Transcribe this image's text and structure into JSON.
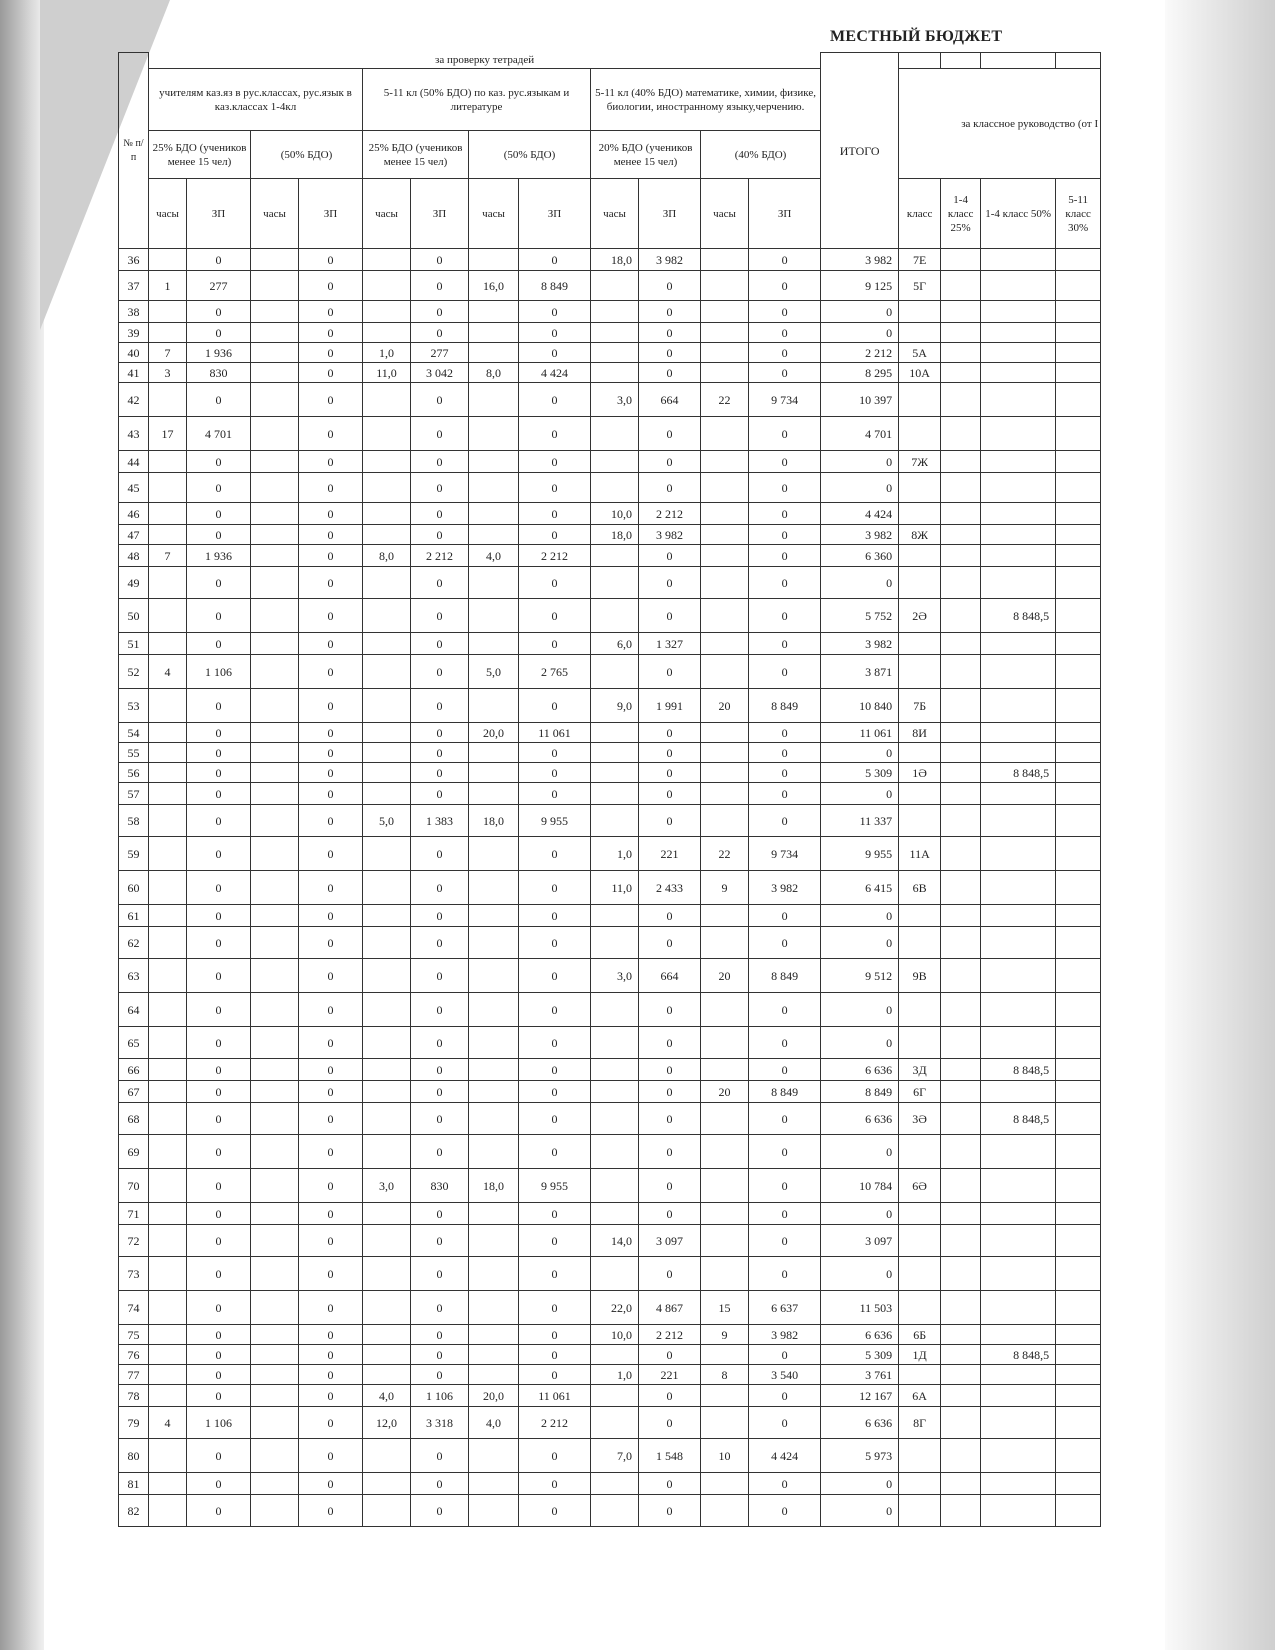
{
  "header": {
    "title": "МЕСТНЫЙ БЮДЖЕТ"
  },
  "table": {
    "section": "за проверку тетрадей",
    "number_header": "№ п/п",
    "groups": [
      "учителям каз.яз в рус.классах, рус.язык в каз.классах 1-4кл",
      "5-11 кл (50% БДО) по каз. рус.языкам и литературе",
      "5-11 кл (40% БДО) математике, химии, физике, биологии, иностранному языку,черчению."
    ],
    "subgroups": [
      "25% БДО (учеников менее 15 чел)",
      "(50% БДО)",
      "25% БДО (учеников менее 15 чел)",
      "(50% БДО)",
      "20% БДО (учеников менее 15 чел)",
      "(40% БДО)"
    ],
    "total_header": "ИТОГО",
    "class_duty_header": "за классное руководство (от I",
    "columns": [
      "часы",
      "ЗП",
      "часы",
      "ЗП",
      "часы",
      "ЗП",
      "часы",
      "ЗП",
      "часы",
      "ЗП",
      "часы",
      "ЗП",
      "класс",
      "1-4 класс 25%",
      "1-4 класс 50%",
      "5-11 класс 30%"
    ],
    "rows": [
      [
        "36",
        null,
        "0",
        null,
        "0",
        null,
        "0",
        null,
        "0",
        "18,0",
        "3 982",
        null,
        "0",
        "3 982",
        "7Е",
        null,
        null,
        null
      ],
      [
        "37",
        "1",
        "277",
        null,
        "0",
        null,
        "0",
        "16,0",
        "8 849",
        null,
        "0",
        null,
        "0",
        "9 125",
        "5Г",
        null,
        null,
        null
      ],
      [
        "38",
        null,
        "0",
        null,
        "0",
        null,
        "0",
        null,
        "0",
        null,
        "0",
        null,
        "0",
        "0",
        null,
        null,
        null,
        null
      ],
      [
        "39",
        null,
        "0",
        null,
        "0",
        null,
        "0",
        null,
        "0",
        null,
        "0",
        null,
        "0",
        "0",
        null,
        null,
        null,
        null
      ],
      [
        "40",
        "7",
        "1 936",
        null,
        "0",
        "1,0",
        "277",
        null,
        "0",
        null,
        "0",
        null,
        "0",
        "2 212",
        "5А",
        null,
        null,
        null
      ],
      [
        "41",
        "3",
        "830",
        null,
        "0",
        "11,0",
        "3 042",
        "8,0",
        "4 424",
        null,
        "0",
        null,
        "0",
        "8 295",
        "10А",
        null,
        null,
        null
      ],
      [
        "42",
        null,
        "0",
        null,
        "0",
        null,
        "0",
        null,
        "0",
        "3,0",
        "664",
        "22",
        "9 734",
        "10 397",
        null,
        null,
        null,
        null
      ],
      [
        "43",
        "17",
        "4 701",
        null,
        "0",
        null,
        "0",
        null,
        "0",
        null,
        "0",
        null,
        "0",
        "4 701",
        null,
        null,
        null,
        null
      ],
      [
        "44",
        null,
        "0",
        null,
        "0",
        null,
        "0",
        null,
        "0",
        null,
        "0",
        null,
        "0",
        "0",
        "7Ж",
        null,
        null,
        null
      ],
      [
        "45",
        null,
        "0",
        null,
        "0",
        null,
        "0",
        null,
        "0",
        null,
        "0",
        null,
        "0",
        "0",
        null,
        null,
        null,
        null
      ],
      [
        "46",
        null,
        "0",
        null,
        "0",
        null,
        "0",
        null,
        "0",
        "10,0",
        "2 212",
        null,
        "0",
        "4 424",
        null,
        null,
        null,
        null
      ],
      [
        "47",
        null,
        "0",
        null,
        "0",
        null,
        "0",
        null,
        "0",
        "18,0",
        "3 982",
        null,
        "0",
        "3 982",
        "8Ж",
        null,
        null,
        null
      ],
      [
        "48",
        "7",
        "1 936",
        null,
        "0",
        "8,0",
        "2 212",
        "4,0",
        "2 212",
        null,
        "0",
        null,
        "0",
        "6 360",
        null,
        null,
        null,
        null
      ],
      [
        "49",
        null,
        "0",
        null,
        "0",
        null,
        "0",
        null,
        "0",
        null,
        "0",
        null,
        "0",
        "0",
        null,
        null,
        null,
        null
      ],
      [
        "50",
        null,
        "0",
        null,
        "0",
        null,
        "0",
        null,
        "0",
        null,
        "0",
        null,
        "0",
        "5 752",
        "2Ә",
        null,
        "8 848,5",
        null
      ],
      [
        "51",
        null,
        "0",
        null,
        "0",
        null,
        "0",
        null,
        "0",
        "6,0",
        "1 327",
        null,
        "0",
        "3 982",
        null,
        null,
        null,
        null
      ],
      [
        "52",
        "4",
        "1 106",
        null,
        "0",
        null,
        "0",
        "5,0",
        "2 765",
        null,
        "0",
        null,
        "0",
        "3 871",
        null,
        null,
        null,
        null
      ],
      [
        "53",
        null,
        "0",
        null,
        "0",
        null,
        "0",
        null,
        "0",
        "9,0",
        "1 991",
        "20",
        "8 849",
        "10 840",
        "7Б",
        null,
        null,
        null
      ],
      [
        "54",
        null,
        "0",
        null,
        "0",
        null,
        "0",
        "20,0",
        "11 061",
        null,
        "0",
        null,
        "0",
        "11 061",
        "8И",
        null,
        null,
        null
      ],
      [
        "55",
        null,
        "0",
        null,
        "0",
        null,
        "0",
        null,
        "0",
        null,
        "0",
        null,
        "0",
        "0",
        null,
        null,
        null,
        null
      ],
      [
        "56",
        null,
        "0",
        null,
        "0",
        null,
        "0",
        null,
        "0",
        null,
        "0",
        null,
        "0",
        "5 309",
        "1Ә",
        null,
        "8 848,5",
        null
      ],
      [
        "57",
        null,
        "0",
        null,
        "0",
        null,
        "0",
        null,
        "0",
        null,
        "0",
        null,
        "0",
        "0",
        null,
        null,
        null,
        null
      ],
      [
        "58",
        null,
        "0",
        null,
        "0",
        "5,0",
        "1 383",
        "18,0",
        "9 955",
        null,
        "0",
        null,
        "0",
        "11 337",
        null,
        null,
        null,
        null
      ],
      [
        "59",
        null,
        "0",
        null,
        "0",
        null,
        "0",
        null,
        "0",
        "1,0",
        "221",
        "22",
        "9 734",
        "9 955",
        "11А",
        null,
        null,
        null
      ],
      [
        "60",
        null,
        "0",
        null,
        "0",
        null,
        "0",
        null,
        "0",
        "11,0",
        "2 433",
        "9",
        "3 982",
        "6 415",
        "6В",
        null,
        null,
        null
      ],
      [
        "61",
        null,
        "0",
        null,
        "0",
        null,
        "0",
        null,
        "0",
        null,
        "0",
        null,
        "0",
        "0",
        null,
        null,
        null,
        null
      ],
      [
        "62",
        null,
        "0",
        null,
        "0",
        null,
        "0",
        null,
        "0",
        null,
        "0",
        null,
        "0",
        "0",
        null,
        null,
        null,
        null
      ],
      [
        "63",
        null,
        "0",
        null,
        "0",
        null,
        "0",
        null,
        "0",
        "3,0",
        "664",
        "20",
        "8 849",
        "9 512",
        "9В",
        null,
        null,
        null
      ],
      [
        "64",
        null,
        "0",
        null,
        "0",
        null,
        "0",
        null,
        "0",
        null,
        "0",
        null,
        "0",
        "0",
        null,
        null,
        null,
        null
      ],
      [
        "65",
        null,
        "0",
        null,
        "0",
        null,
        "0",
        null,
        "0",
        null,
        "0",
        null,
        "0",
        "0",
        null,
        null,
        null,
        null
      ],
      [
        "66",
        null,
        "0",
        null,
        "0",
        null,
        "0",
        null,
        "0",
        null,
        "0",
        null,
        "0",
        "6 636",
        "3Д",
        null,
        "8 848,5",
        null
      ],
      [
        "67",
        null,
        "0",
        null,
        "0",
        null,
        "0",
        null,
        "0",
        null,
        "0",
        "20",
        "8 849",
        "8 849",
        "6Г",
        null,
        null,
        null
      ],
      [
        "68",
        null,
        "0",
        null,
        "0",
        null,
        "0",
        null,
        "0",
        null,
        "0",
        null,
        "0",
        "6 636",
        "3Ә",
        null,
        "8 848,5",
        null
      ],
      [
        "69",
        null,
        "0",
        null,
        "0",
        null,
        "0",
        null,
        "0",
        null,
        "0",
        null,
        "0",
        "0",
        null,
        null,
        null,
        null
      ],
      [
        "70",
        null,
        "0",
        null,
        "0",
        "3,0",
        "830",
        "18,0",
        "9 955",
        null,
        "0",
        null,
        "0",
        "10 784",
        "6Ә",
        null,
        null,
        null
      ],
      [
        "71",
        null,
        "0",
        null,
        "0",
        null,
        "0",
        null,
        "0",
        null,
        "0",
        null,
        "0",
        "0",
        null,
        null,
        null,
        null
      ],
      [
        "72",
        null,
        "0",
        null,
        "0",
        null,
        "0",
        null,
        "0",
        "14,0",
        "3 097",
        null,
        "0",
        "3 097",
        null,
        null,
        null,
        null
      ],
      [
        "73",
        null,
        "0",
        null,
        "0",
        null,
        "0",
        null,
        "0",
        null,
        "0",
        null,
        "0",
        "0",
        null,
        null,
        null,
        null
      ],
      [
        "74",
        null,
        "0",
        null,
        "0",
        null,
        "0",
        null,
        "0",
        "22,0",
        "4 867",
        "15",
        "6 637",
        "11 503",
        null,
        null,
        null,
        null
      ],
      [
        "75",
        null,
        "0",
        null,
        "0",
        null,
        "0",
        null,
        "0",
        "10,0",
        "2 212",
        "9",
        "3 982",
        "6 636",
        "6Б",
        null,
        null,
        null
      ],
      [
        "76",
        null,
        "0",
        null,
        "0",
        null,
        "0",
        null,
        "0",
        null,
        "0",
        null,
        "0",
        "5 309",
        "1Д",
        null,
        "8 848,5",
        null
      ],
      [
        "77",
        null,
        "0",
        null,
        "0",
        null,
        "0",
        null,
        "0",
        "1,0",
        "221",
        "8",
        "3 540",
        "3 761",
        null,
        null,
        null,
        null
      ],
      [
        "78",
        null,
        "0",
        null,
        "0",
        "4,0",
        "1 106",
        "20,0",
        "11 061",
        null,
        "0",
        null,
        "0",
        "12 167",
        "6А",
        null,
        null,
        null
      ],
      [
        "79",
        "4",
        "1 106",
        null,
        "0",
        "12,0",
        "3 318",
        "4,0",
        "2 212",
        null,
        "0",
        null,
        "0",
        "6 636",
        "8Г",
        null,
        null,
        null
      ],
      [
        "80",
        null,
        "0",
        null,
        "0",
        null,
        "0",
        null,
        "0",
        "7,0",
        "1 548",
        "10",
        "4 424",
        "5 973",
        null,
        null,
        null,
        null
      ],
      [
        "81",
        null,
        "0",
        null,
        "0",
        null,
        "0",
        null,
        "0",
        null,
        "0",
        null,
        "0",
        "0",
        null,
        null,
        null,
        null
      ],
      [
        "82",
        null,
        "0",
        null,
        "0",
        null,
        "0",
        null,
        "0",
        null,
        "0",
        null,
        "0",
        "0",
        null,
        null,
        null,
        null
      ]
    ]
  }
}
